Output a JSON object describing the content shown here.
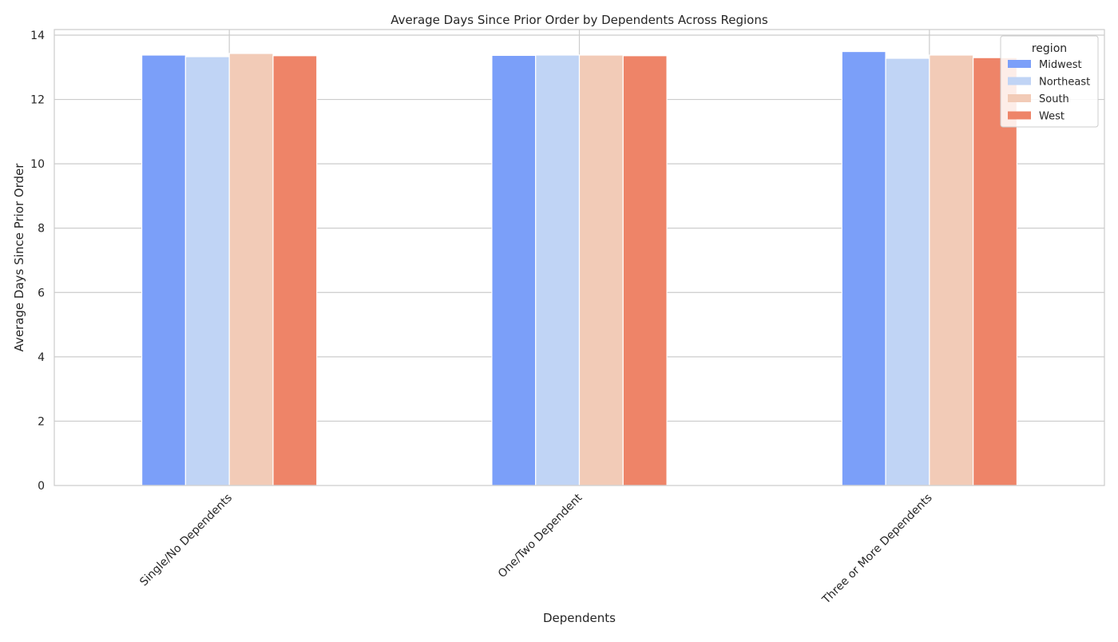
{
  "chart_data": {
    "type": "bar",
    "title": "Average Days Since Prior Order by Dependents Across Regions",
    "xlabel": "Dependents",
    "ylabel": "Average Days Since Prior Order",
    "categories": [
      "Single/No Dependents",
      "One/Two Dependent",
      "Three or More Dependents"
    ],
    "series": [
      {
        "name": "Midwest",
        "color": "#7b9ff9",
        "values": [
          13.38,
          13.37,
          13.49
        ]
      },
      {
        "name": "Northeast",
        "color": "#c0d4f5",
        "values": [
          13.33,
          13.38,
          13.28
        ]
      },
      {
        "name": "South",
        "color": "#f2cbb7",
        "values": [
          13.43,
          13.38,
          13.38
        ]
      },
      {
        "name": "West",
        "color": "#ee8468",
        "values": [
          13.36,
          13.36,
          13.3
        ]
      }
    ],
    "ylim": [
      0,
      14
    ],
    "yticks": [
      "0",
      "2",
      "4",
      "6",
      "8",
      "10",
      "12",
      "14"
    ],
    "grid": true,
    "legend": {
      "title": "region",
      "placement": "top-right"
    },
    "xtick_rotation": 45
  }
}
